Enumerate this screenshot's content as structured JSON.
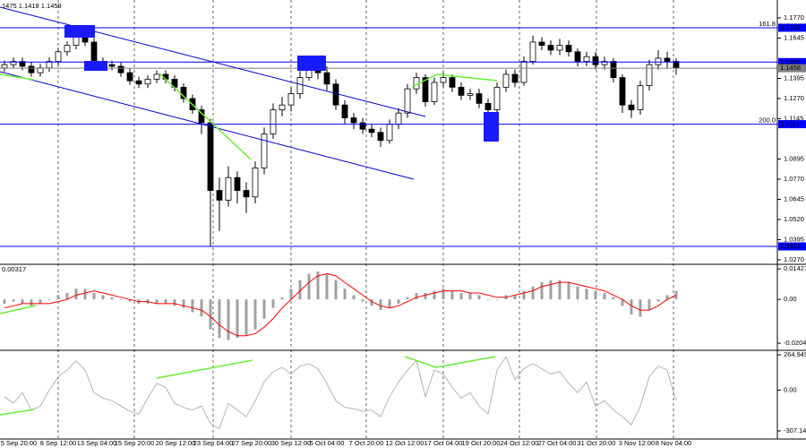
{
  "chart_data": {
    "type": "candlestick",
    "title": "1475 1.1418 1.1458",
    "xlim": [
      0,
      86.8
    ],
    "xticks": [
      {
        "value": 2.1,
        "label": "5 Sep 20:00"
      },
      {
        "value": 6.5,
        "label": "8 Sep 12:00"
      },
      {
        "value": 10.8,
        "label": "13 Sep 04:00"
      },
      {
        "value": 15.0,
        "label": "15 Sep 20:00"
      },
      {
        "value": 19.6,
        "label": "20 Sep 12:00"
      },
      {
        "value": 23.8,
        "label": "23 Sep 04:00"
      },
      {
        "value": 28.1,
        "label": "27 Sep 20:00"
      },
      {
        "value": 32.5,
        "label": "30 Sep 12:00"
      },
      {
        "value": 36.5,
        "label": "5 Oct 04:00"
      },
      {
        "value": 40.9,
        "label": "7 Oct 20:00"
      },
      {
        "value": 45.2,
        "label": "12 Oct 12:00"
      },
      {
        "value": 49.5,
        "label": "17 Oct 04:00"
      },
      {
        "value": 53.7,
        "label": "19 Oct 20:00"
      },
      {
        "value": 58.0,
        "label": "24 Oct 12:00"
      },
      {
        "value": 62.2,
        "label": "27 Oct 04:00"
      },
      {
        "value": 66.6,
        "label": "31 Oct 20:00"
      },
      {
        "value": 71.1,
        "label": "3 Nov 12:00"
      },
      {
        "value": 75.2,
        "label": "8 Nov 04:00"
      }
    ],
    "x": [
      0.5,
      1.5,
      2.5,
      3.5,
      4.5,
      5.5,
      6.5,
      7.5,
      8.5,
      9.5,
      10.5,
      11.5,
      12.5,
      13.5,
      14.5,
      15.5,
      16.5,
      17.5,
      18.5,
      19.5,
      20.5,
      21.5,
      22.5,
      23.5,
      24.5,
      25.5,
      26.5,
      27.5,
      28.5,
      29.5,
      30.5,
      31.5,
      32.5,
      33.5,
      34.5,
      35.5,
      36.5,
      37.5,
      38.5,
      39.5,
      40.5,
      41.5,
      42.5,
      43.5,
      44.5,
      45.5,
      46.5,
      47.5,
      48.5,
      49.5,
      50.5,
      51.5,
      52.5,
      53.5,
      54.5,
      55.5,
      56.5,
      57.5,
      58.5,
      59.5,
      60.5,
      61.5,
      62.5,
      63.5,
      64.5,
      65.5,
      66.5,
      67.5,
      68.5,
      69.5,
      70.5,
      71.5,
      72.5,
      73.5,
      74.5,
      75.5
    ],
    "open": [
      1.146,
      1.148,
      1.15,
      1.147,
      1.143,
      1.146,
      1.15,
      1.156,
      1.16,
      1.166,
      1.162,
      1.15,
      1.148,
      1.147,
      1.143,
      1.138,
      1.136,
      1.139,
      1.142,
      1.139,
      1.134,
      1.127,
      1.12,
      1.112,
      1.07,
      1.064,
      1.078,
      1.07,
      1.066,
      1.084,
      1.105,
      1.12,
      1.123,
      1.13,
      1.14,
      1.146,
      1.143,
      1.136,
      1.123,
      1.115,
      1.112,
      1.108,
      1.106,
      1.101,
      1.111,
      1.118,
      1.133,
      1.14,
      1.125,
      1.137,
      1.14,
      1.134,
      1.129,
      1.13,
      1.124,
      1.12,
      1.134,
      1.142,
      1.137,
      1.15,
      1.162,
      1.16,
      1.157,
      1.16,
      1.156,
      1.15,
      1.153,
      1.148,
      1.15,
      1.14,
      1.123,
      1.12,
      1.135,
      1.148,
      1.152,
      1.15
    ],
    "high": [
      1.1505,
      1.1525,
      1.1525,
      1.1495,
      1.1485,
      1.1525,
      1.1585,
      1.1625,
      1.171,
      1.169,
      1.1645,
      1.1525,
      1.1505,
      1.1495,
      1.1455,
      1.1405,
      1.1415,
      1.1445,
      1.1445,
      1.1415,
      1.1365,
      1.1295,
      1.1225,
      1.1145,
      1.078,
      1.085,
      1.082,
      1.075,
      1.088,
      1.109,
      1.124,
      1.128,
      1.134,
      1.144,
      1.152,
      1.15,
      1.147,
      1.139,
      1.126,
      1.118,
      1.115,
      1.111,
      1.109,
      1.114,
      1.121,
      1.136,
      1.143,
      1.142,
      1.14,
      1.143,
      1.142,
      1.137,
      1.133,
      1.133,
      1.127,
      1.137,
      1.145,
      1.145,
      1.153,
      1.166,
      1.165,
      1.163,
      1.164,
      1.163,
      1.158,
      1.156,
      1.156,
      1.153,
      1.152,
      1.142,
      1.126,
      1.138,
      1.151,
      1.157,
      1.156,
      1.152
    ],
    "low": [
      1.1435,
      1.1455,
      1.1445,
      1.1405,
      1.1405,
      1.1435,
      1.1475,
      1.1535,
      1.1575,
      1.1595,
      1.1475,
      1.1455,
      1.1445,
      1.1405,
      1.1355,
      1.1335,
      1.1335,
      1.1365,
      1.1365,
      1.1315,
      1.1245,
      1.1175,
      1.105,
      1.0353,
      1.045,
      1.06,
      1.062,
      1.056,
      1.062,
      1.08,
      1.102,
      1.116,
      1.119,
      1.127,
      1.138,
      1.139,
      1.132,
      1.12,
      1.111,
      1.108,
      1.105,
      1.103,
      1.097,
      1.099,
      1.108,
      1.115,
      1.13,
      1.122,
      1.123,
      1.134,
      1.131,
      1.126,
      1.126,
      1.121,
      1.117,
      1.118,
      1.131,
      1.134,
      1.135,
      1.148,
      1.157,
      1.154,
      1.154,
      1.153,
      1.147,
      1.147,
      1.145,
      1.145,
      1.137,
      1.118,
      1.115,
      1.117,
      1.132,
      1.145,
      1.146,
      1.1418
    ],
    "close": [
      1.148,
      1.15,
      1.147,
      1.143,
      1.146,
      1.15,
      1.156,
      1.16,
      1.166,
      1.162,
      1.15,
      1.148,
      1.147,
      1.143,
      1.138,
      1.136,
      1.139,
      1.142,
      1.139,
      1.134,
      1.127,
      1.12,
      1.112,
      1.07,
      1.064,
      1.078,
      1.07,
      1.066,
      1.084,
      1.105,
      1.12,
      1.123,
      1.13,
      1.14,
      1.146,
      1.143,
      1.136,
      1.123,
      1.115,
      1.112,
      1.108,
      1.106,
      1.101,
      1.111,
      1.118,
      1.133,
      1.14,
      1.125,
      1.137,
      1.14,
      1.134,
      1.129,
      1.13,
      1.124,
      1.12,
      1.134,
      1.142,
      1.137,
      1.15,
      1.162,
      1.16,
      1.157,
      1.16,
      1.156,
      1.15,
      1.153,
      1.148,
      1.15,
      1.14,
      1.123,
      1.12,
      1.135,
      1.148,
      1.152,
      1.15,
      1.1458
    ],
    "up_color": "#ffffff",
    "down_color": "#000000",
    "ylim": [
      1.0242,
      1.1881
    ],
    "yticks": [
      {
        "value": 1.177,
        "label": "1.1770"
      },
      1.1645,
      1.1395,
      {
        "value": 1.127,
        "label": "1.1270"
      },
      1.1145,
      1.0895,
      {
        "value": 1.077,
        "label": "1.0770"
      },
      1.0645,
      {
        "value": 1.052,
        "label": "1.0520"
      },
      1.0395,
      {
        "value": 1.027,
        "label": "1.0270"
      }
    ],
    "levels": [
      {
        "value": 1.1709,
        "tag": "161.8",
        "color": "#0000ff"
      },
      {
        "value": 1.1496,
        "color": "#0000ff"
      },
      {
        "value": 1.1458,
        "color": "#808080"
      },
      {
        "value": 1.1111,
        "tag": "200.0",
        "color": "#0000ff"
      },
      {
        "value": 1.0353,
        "color": "#0000ff"
      }
    ],
    "panels": [
      {
        "type": "macd",
        "current_value": 0.00317,
        "ylim": [
          -0.0234,
          0.016
        ],
        "yticks": [
          0.01427,
          {
            "value": 0,
            "label": "0.00"
          },
          -0.02049
        ],
        "histogram": {
          "color": "#a0a0a0",
          "values": [
            -0.002,
            -0.001,
            -0.002,
            -0.003,
            -0.002,
            0.0,
            0.002,
            0.003,
            0.005,
            0.005,
            0.003,
            0.002,
            0.001,
            0.0,
            -0.001,
            -0.002,
            -0.002,
            -0.002,
            -0.002,
            -0.003,
            -0.004,
            -0.006,
            -0.008,
            -0.014,
            -0.018,
            -0.019,
            -0.018,
            -0.017,
            -0.014,
            -0.009,
            -0.004,
            0.001,
            0.005,
            0.009,
            0.012,
            0.013,
            0.012,
            0.009,
            0.005,
            0.002,
            -0.001,
            -0.003,
            -0.005,
            -0.004,
            -0.002,
            0.001,
            0.003,
            0.003,
            0.004,
            0.005,
            0.004,
            0.003,
            0.003,
            0.002,
            0.0,
            0.0,
            0.002,
            0.002,
            0.004,
            0.006,
            0.008,
            0.009,
            0.009,
            0.008,
            0.006,
            0.005,
            0.004,
            0.003,
            0.001,
            -0.003,
            -0.007,
            -0.008,
            -0.005,
            -0.001,
            0.002,
            0.004
          ]
        },
        "signal": {
          "color": "#ff0000",
          "values": [
            -0.004,
            -0.003,
            -0.002,
            -0.002,
            -0.002,
            -0.002,
            -0.001,
            0.0,
            0.002,
            0.003,
            0.004,
            0.003,
            0.002,
            0.001,
            0.0,
            -0.001,
            -0.001,
            -0.002,
            -0.002,
            -0.002,
            -0.003,
            -0.004,
            -0.005,
            -0.008,
            -0.012,
            -0.015,
            -0.017,
            -0.017,
            -0.016,
            -0.013,
            -0.009,
            -0.004,
            0.0,
            0.004,
            0.008,
            0.011,
            0.012,
            0.011,
            0.008,
            0.005,
            0.002,
            -0.001,
            -0.003,
            -0.004,
            -0.003,
            -0.001,
            0.001,
            0.002,
            0.003,
            0.004,
            0.004,
            0.004,
            0.003,
            0.003,
            0.002,
            0.001,
            0.001,
            0.002,
            0.003,
            0.004,
            0.006,
            0.007,
            0.008,
            0.008,
            0.007,
            0.006,
            0.005,
            0.004,
            0.002,
            0.0,
            -0.003,
            -0.005,
            -0.005,
            -0.003,
            0.0,
            0.002
          ]
        }
      },
      {
        "type": "line",
        "ylim": [
          -368,
          292
        ],
        "yticks": [
          264.9492,
          {
            "value": 0,
            "label": "0.00"
          },
          -307.142
        ],
        "color": "#b4b4b4",
        "values": [
          -50,
          -100,
          -20,
          -150,
          -120,
          0,
          100,
          150,
          220,
          150,
          -20,
          -60,
          -80,
          -120,
          -160,
          -180,
          -60,
          50,
          20,
          -100,
          -130,
          -150,
          -120,
          -250,
          -290,
          -100,
          -150,
          -200,
          -80,
          60,
          140,
          170,
          120,
          180,
          200,
          160,
          50,
          -80,
          -130,
          -140,
          -160,
          -150,
          -200,
          -50,
          60,
          150,
          220,
          -50,
          150,
          120,
          20,
          -60,
          -20,
          -120,
          -180,
          150,
          250,
          80,
          160,
          200,
          160,
          120,
          140,
          50,
          -20,
          60,
          -120,
          -80,
          -150,
          -200,
          -260,
          -120,
          100,
          180,
          150,
          -80
        ]
      }
    ]
  }
}
